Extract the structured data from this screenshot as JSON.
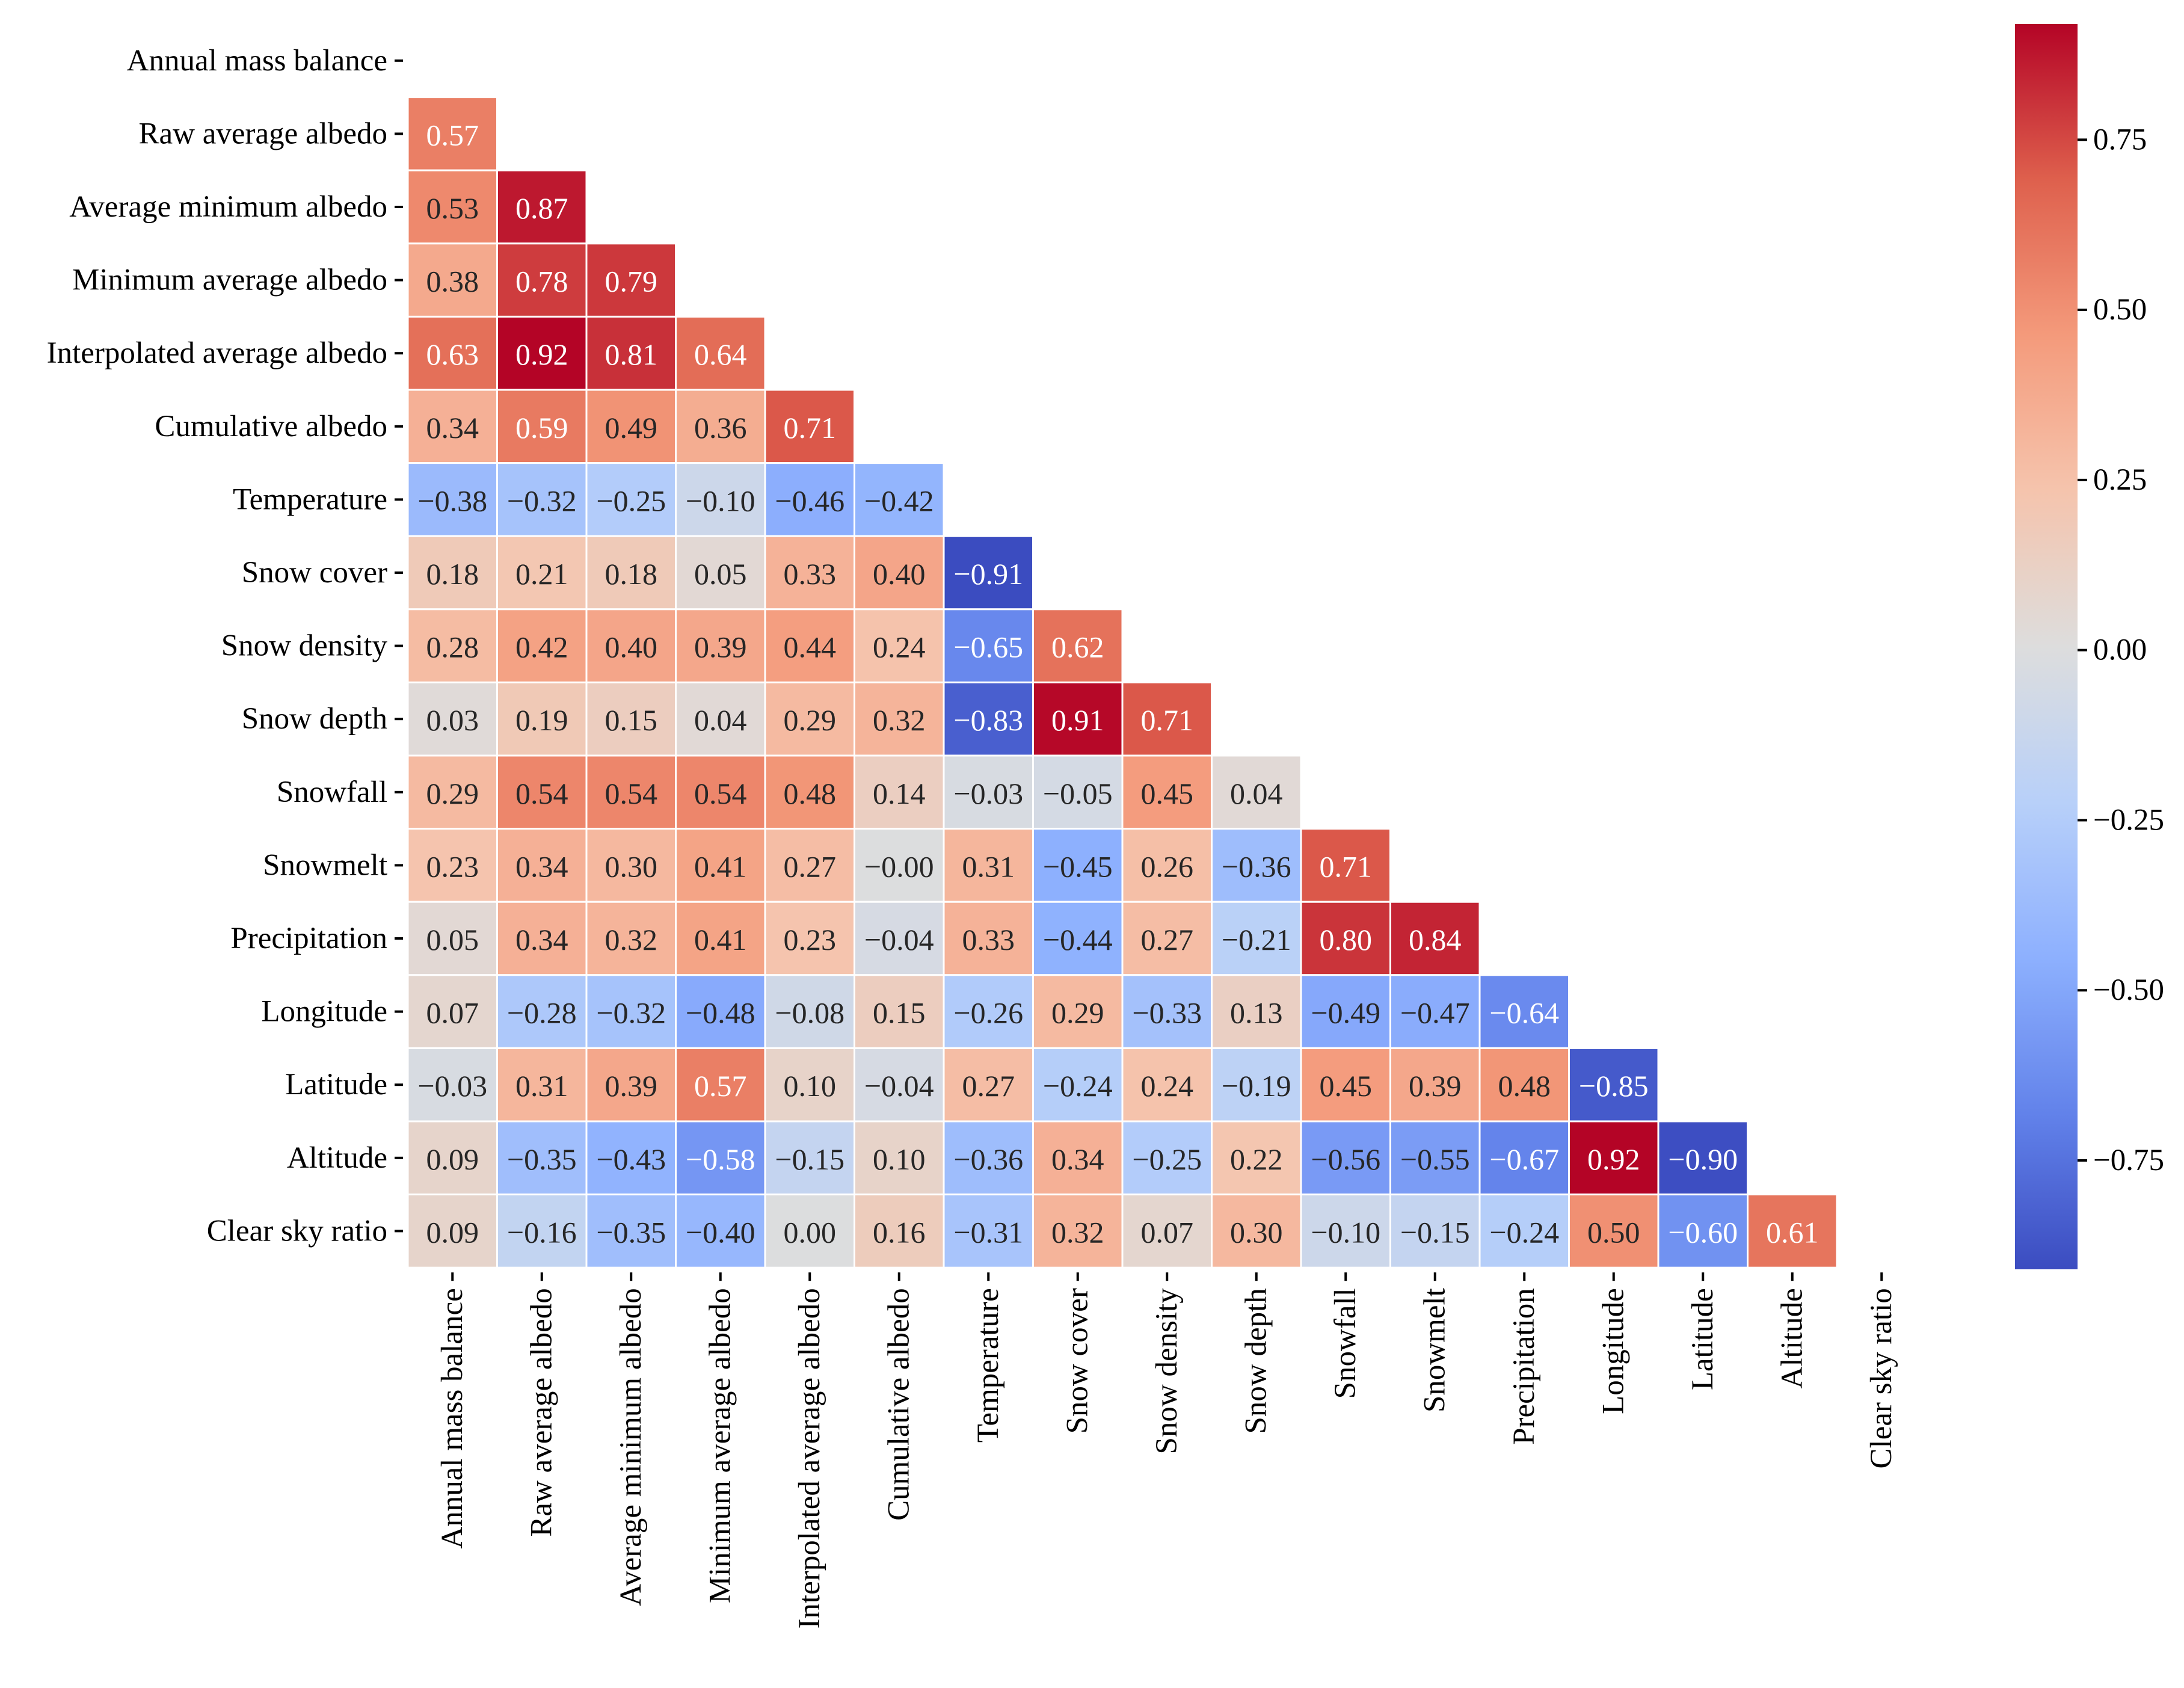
{
  "chart_data": {
    "type": "heatmap",
    "title": "",
    "variables": [
      "Annual mass balance",
      "Raw average albedo",
      "Average minimum albedo",
      "Minimum average albedo",
      "Interpolated average albedo",
      "Cumulative albedo",
      "Temperature",
      "Snow cover",
      "Snow density",
      "Snow depth",
      "Snowfall",
      "Snowmelt",
      "Precipitation",
      "Longitude",
      "Latitude",
      "Altitude",
      "Clear sky ratio"
    ],
    "lower_triangle": [
      [],
      [
        0.57
      ],
      [
        0.53,
        0.87
      ],
      [
        0.38,
        0.78,
        0.79
      ],
      [
        0.63,
        0.92,
        0.81,
        0.64
      ],
      [
        0.34,
        0.59,
        0.49,
        0.36,
        0.71
      ],
      [
        -0.38,
        -0.32,
        -0.25,
        -0.1,
        -0.46,
        -0.42
      ],
      [
        0.18,
        0.21,
        0.18,
        0.05,
        0.33,
        0.4,
        -0.91
      ],
      [
        0.28,
        0.42,
        0.4,
        0.39,
        0.44,
        0.24,
        -0.65,
        0.62
      ],
      [
        0.03,
        0.19,
        0.15,
        0.04,
        0.29,
        0.32,
        -0.83,
        0.91,
        0.71
      ],
      [
        0.29,
        0.54,
        0.54,
        0.54,
        0.48,
        0.14,
        -0.03,
        -0.05,
        0.45,
        0.04
      ],
      [
        0.23,
        0.34,
        0.3,
        0.41,
        0.27,
        -0.0,
        0.31,
        -0.45,
        0.26,
        -0.36,
        0.71
      ],
      [
        0.05,
        0.34,
        0.32,
        0.41,
        0.23,
        -0.04,
        0.33,
        -0.44,
        0.27,
        -0.21,
        0.8,
        0.84
      ],
      [
        0.07,
        -0.28,
        -0.32,
        -0.48,
        -0.08,
        0.15,
        -0.26,
        0.29,
        -0.33,
        0.13,
        -0.49,
        -0.47,
        -0.64
      ],
      [
        -0.03,
        0.31,
        0.39,
        0.57,
        0.1,
        -0.04,
        0.27,
        -0.24,
        0.24,
        -0.19,
        0.45,
        0.39,
        0.48,
        -0.85
      ],
      [
        0.09,
        -0.35,
        -0.43,
        -0.58,
        -0.15,
        0.1,
        -0.36,
        0.34,
        -0.25,
        0.22,
        -0.56,
        -0.55,
        -0.67,
        0.92,
        -0.9
      ],
      [
        0.09,
        -0.16,
        -0.35,
        -0.4,
        0.0,
        0.16,
        -0.31,
        0.32,
        0.07,
        0.3,
        -0.1,
        -0.15,
        -0.24,
        0.5,
        -0.6,
        0.61
      ]
    ],
    "colormap": "coolwarm",
    "vmin": -0.91,
    "vmax": 0.92,
    "colorbar_ticks": [
      0.75,
      0.5,
      0.25,
      0.0,
      -0.25,
      -0.5,
      -0.75
    ],
    "colorbar_tick_labels": [
      "0.75",
      "0.50",
      "0.25",
      "0.00",
      "−0.25",
      "−0.50",
      "−0.75"
    ],
    "mask": "upper triangle including diagonal",
    "annotation_format": "0.00"
  }
}
